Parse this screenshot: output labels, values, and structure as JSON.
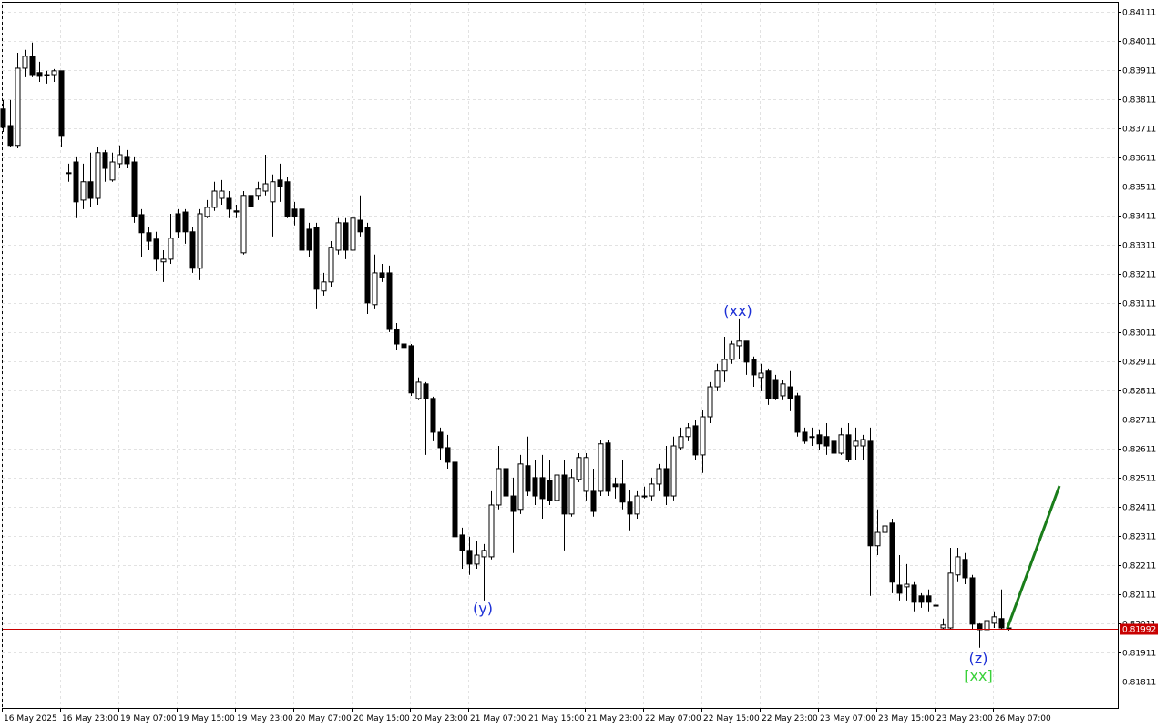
{
  "chart_data": {
    "type": "candlestick",
    "ylim": [
      0.8172,
      0.84145
    ],
    "yticks": [
      0.84111,
      0.84011,
      0.83911,
      0.83811,
      0.83711,
      0.83611,
      0.83511,
      0.83411,
      0.83311,
      0.83211,
      0.83111,
      0.83011,
      0.82911,
      0.82811,
      0.82711,
      0.82611,
      0.82511,
      0.82411,
      0.82311,
      0.82211,
      0.82111,
      0.82011,
      0.81911,
      0.81811
    ],
    "xticks": [
      {
        "value": 0,
        "label": "16 May 2025"
      },
      {
        "value": 8,
        "label": "16 May 23:00"
      },
      {
        "value": 16,
        "label": "19 May 07:00"
      },
      {
        "value": 24,
        "label": "19 May 15:00"
      },
      {
        "value": 32,
        "label": "19 May 23:00"
      },
      {
        "value": 40,
        "label": "20 May 07:00"
      },
      {
        "value": 48,
        "label": "20 May 15:00"
      },
      {
        "value": 56,
        "label": "20 May 23:00"
      },
      {
        "value": 64,
        "label": "21 May 07:00"
      },
      {
        "value": 72,
        "label": "21 May 15:00"
      },
      {
        "value": 80,
        "label": "21 May 23:00"
      },
      {
        "value": 88,
        "label": "22 May 07:00"
      },
      {
        "value": 96,
        "label": "22 May 15:00"
      },
      {
        "value": 104,
        "label": "22 May 23:00"
      },
      {
        "value": 112,
        "label": "23 May 07:00"
      },
      {
        "value": 120,
        "label": "23 May 15:00"
      },
      {
        "value": 128,
        "label": "23 May 23:00"
      },
      {
        "value": 136,
        "label": "26 May 07:00"
      }
    ],
    "grid": true,
    "up_color": "#ffffff",
    "down_color": "#000000",
    "current_price": 0.81992,
    "current_price_color": "#c80000",
    "annotations": [
      {
        "text": "(y)",
        "color": "#1c2fd6"
      },
      {
        "text": "(xx)",
        "color": "#1c2fd6"
      },
      {
        "text": "(z)",
        "color": "#1c2fd6"
      },
      {
        "text": "[xx]",
        "color": "#3ad13a"
      }
    ],
    "open": [
      0.83777,
      0.8372,
      0.83652,
      0.83917,
      0.83958,
      0.83902,
      0.83895,
      0.83895,
      0.83908,
      0.83558,
      0.83595,
      0.83464,
      0.83527,
      0.8347,
      0.83627,
      0.83533,
      0.83589,
      0.83614,
      0.83595,
      0.83414,
      0.83352,
      0.8333,
      0.83252,
      0.83261,
      0.83417,
      0.83423,
      0.83355,
      0.8323,
      0.83408,
      0.83439,
      0.8347,
      0.8347,
      0.83427,
      0.83283,
      0.8348,
      0.8348,
      0.83495,
      0.83458,
      0.83533,
      0.83527,
      0.83433,
      0.83433,
      0.83364,
      0.8337,
      0.83152,
      0.83183,
      0.83292,
      0.83386,
      0.83292,
      0.83395,
      0.8337,
      0.83105,
      0.83214,
      0.83214,
      0.8302,
      0.8297,
      0.82964,
      0.82783,
      0.82833,
      0.82783,
      0.82667,
      0.82614,
      0.82564,
      0.82314,
      0.82261,
      0.82214,
      0.82239,
      0.82239,
      0.82417,
      0.82542,
      0.82448,
      0.82402,
      0.82552,
      0.82511,
      0.82511,
      0.82502,
      0.82433,
      0.8252,
      0.82386,
      0.82505,
      0.82464,
      0.82464,
      0.82464,
      0.8263,
      0.82489,
      0.82489,
      0.82427,
      0.82386,
      0.82448,
      0.82448,
      0.82489,
      0.82542,
      0.82448,
      0.82614,
      0.82652,
      0.82689,
      0.82589,
      0.8272,
      0.82823,
      0.82877,
      0.82917,
      0.82964,
      0.8298,
      0.82917,
      0.82855,
      0.82877,
      0.82845,
      0.82792,
      0.82823,
      0.82792,
      0.82667,
      0.82652,
      0.82658,
      0.82652,
      0.82636,
      0.82595,
      0.82658,
      0.8262,
      0.8262,
      0.82636,
      0.82277,
      0.82323,
      0.82355,
      0.82142,
      0.82136,
      0.82142,
      0.82105,
      0.82105,
      0.82073,
      0.81995,
      0.81995,
      0.82177,
      0.8223,
      0.82167,
      0.82008,
      0.81989,
      0.82011,
      0.82027,
      0.81995
    ],
    "high": [
      0.83808,
      0.83808,
      0.8397,
      0.8398,
      0.84005,
      0.83939,
      0.83908,
      0.83914,
      0.83908,
      0.83589,
      0.83614,
      0.83589,
      0.83627,
      0.83645,
      0.83636,
      0.83627,
      0.83652,
      0.83636,
      0.83614,
      0.83433,
      0.8337,
      0.83355,
      0.83292,
      0.83417,
      0.83433,
      0.83433,
      0.8337,
      0.83433,
      0.83464,
      0.83527,
      0.83533,
      0.83495,
      0.83448,
      0.83495,
      0.83489,
      0.83527,
      0.8362,
      0.83552,
      0.83589,
      0.83542,
      0.83458,
      0.83448,
      0.83386,
      0.83386,
      0.83214,
      0.83323,
      0.83402,
      0.83402,
      0.83417,
      0.8348,
      0.83386,
      0.83277,
      0.83245,
      0.83239,
      0.83042,
      0.82995,
      0.8297,
      0.82855,
      0.82839,
      0.82789,
      0.82683,
      0.82658,
      0.82573,
      0.82339,
      0.82308,
      0.82292,
      0.82283,
      0.82464,
      0.8262,
      0.8262,
      0.82511,
      0.82589,
      0.82652,
      0.82573,
      0.82589,
      0.82573,
      0.82558,
      0.82573,
      0.82542,
      0.82595,
      0.82595,
      0.82542,
      0.82639,
      0.82639,
      0.82511,
      0.82573,
      0.8247,
      0.82464,
      0.8248,
      0.82511,
      0.82558,
      0.8262,
      0.82652,
      0.82683,
      0.82698,
      0.82708,
      0.82745,
      0.82839,
      0.82902,
      0.82995,
      0.8298,
      0.83058,
      0.8298,
      0.82927,
      0.82902,
      0.82886,
      0.82864,
      0.82845,
      0.82877,
      0.82802,
      0.82683,
      0.82683,
      0.82677,
      0.82698,
      0.82714,
      0.82683,
      0.82698,
      0.82683,
      0.82658,
      0.82683,
      0.82402,
      0.82439,
      0.8237,
      0.82245,
      0.82214,
      0.82152,
      0.82114,
      0.82127,
      0.82114,
      0.82027,
      0.8227,
      0.8227,
      0.82252,
      0.82177,
      0.82011,
      0.82042,
      0.82052,
      0.82127,
      0.82008
    ],
    "low": [
      0.83698,
      0.83645,
      0.83642,
      0.83886,
      0.83886,
      0.8387,
      0.83864,
      0.8387,
      0.83645,
      0.83527,
      0.83402,
      0.83433,
      0.83439,
      0.83448,
      0.83527,
      0.83527,
      0.83573,
      0.83573,
      0.83386,
      0.8327,
      0.83292,
      0.8322,
      0.83183,
      0.83245,
      0.83333,
      0.83314,
      0.83214,
      0.83189,
      0.83402,
      0.83427,
      0.83448,
      0.83402,
      0.83402,
      0.83277,
      0.83386,
      0.83464,
      0.8348,
      0.83339,
      0.83458,
      0.83402,
      0.83377,
      0.83277,
      0.8327,
      0.83089,
      0.83136,
      0.83167,
      0.83277,
      0.83261,
      0.83277,
      0.83339,
      0.83073,
      0.83089,
      0.83183,
      0.83011,
      0.82948,
      0.82917,
      0.82792,
      0.82777,
      0.82589,
      0.82636,
      0.82573,
      0.82542,
      0.82261,
      0.82198,
      0.82177,
      0.82198,
      0.82089,
      0.8223,
      0.82402,
      0.82417,
      0.82252,
      0.82386,
      0.82448,
      0.82417,
      0.8237,
      0.82417,
      0.82386,
      0.82261,
      0.82377,
      0.82495,
      0.82433,
      0.82377,
      0.82448,
      0.82448,
      0.82439,
      0.82402,
      0.8233,
      0.8237,
      0.82439,
      0.82433,
      0.82464,
      0.82417,
      0.82433,
      0.82605,
      0.82636,
      0.82573,
      0.82527,
      0.82698,
      0.82808,
      0.82839,
      0.82902,
      0.82917,
      0.82864,
      0.82823,
      0.82808,
      0.82761,
      0.82777,
      0.82777,
      0.82739,
      0.82652,
      0.82627,
      0.8262,
      0.82605,
      0.82589,
      0.82573,
      0.82589,
      0.82564,
      0.82573,
      0.82573,
      0.82105,
      0.82245,
      0.82261,
      0.82114,
      0.82089,
      0.82089,
      0.82052,
      0.82064,
      0.82052,
      0.82042,
      0.81989,
      0.81989,
      0.82152,
      0.82145,
      0.81989,
      0.81927,
      0.8197,
      0.81995,
      0.81989,
      0.81986
    ],
    "close": [
      0.83714,
      0.83652,
      0.83917,
      0.83958,
      0.83895,
      0.83889,
      0.83892,
      0.83908,
      0.83683,
      0.83555,
      0.83458,
      0.83527,
      0.8347,
      0.83627,
      0.83573,
      0.83595,
      0.8362,
      0.83589,
      0.83408,
      0.83352,
      0.83323,
      0.83261,
      0.83261,
      0.83333,
      0.83355,
      0.83355,
      0.8323,
      0.83417,
      0.83439,
      0.83495,
      0.83495,
      0.83433,
      0.83423,
      0.8348,
      0.83442,
      0.83502,
      0.8352,
      0.83527,
      0.83511,
      0.83408,
      0.83408,
      0.83292,
      0.83292,
      0.83158,
      0.83183,
      0.83302,
      0.83386,
      0.83292,
      0.83402,
      0.83355,
      0.83111,
      0.83214,
      0.83198,
      0.8302,
      0.8297,
      0.82958,
      0.82802,
      0.82839,
      0.82783,
      0.82667,
      0.82614,
      0.82564,
      0.82308,
      0.82261,
      0.82214,
      0.82245,
      0.82261,
      0.82417,
      0.82542,
      0.82448,
      0.82395,
      0.82558,
      0.82464,
      0.82448,
      0.82439,
      0.82433,
      0.8252,
      0.82386,
      0.82511,
      0.8258,
      0.8258,
      0.82395,
      0.82627,
      0.82464,
      0.8248,
      0.82427,
      0.82386,
      0.82448,
      0.82445,
      0.82489,
      0.82542,
      0.82448,
      0.8262,
      0.82652,
      0.82683,
      0.82589,
      0.8272,
      0.82823,
      0.82877,
      0.82917,
      0.8297,
      0.8298,
      0.82908,
      0.82864,
      0.8287,
      0.82783,
      0.82783,
      0.82833,
      0.82783,
      0.82667,
      0.82636,
      0.82649,
      0.82627,
      0.8262,
      0.82595,
      0.82658,
      0.82573,
      0.82636,
      0.82642,
      0.82277,
      0.82323,
      0.82345,
      0.82152,
      0.82114,
      0.82145,
      0.82083,
      0.82083,
      0.82083,
      0.8207,
      0.82005,
      0.82183,
      0.82239,
      0.82167,
      0.82008,
      0.81989,
      0.8202,
      0.82033,
      0.81995,
      0.81992
    ]
  }
}
